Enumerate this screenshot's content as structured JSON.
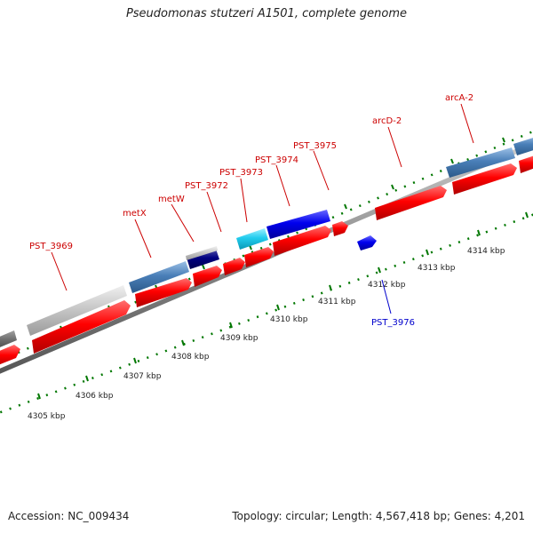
{
  "title": "Pseudomonas stutzeri A1501, complete genome",
  "footer": {
    "accession": "Accession: NC_009434",
    "topology": "Topology: circular; Length: 4,567,418 bp; Genes: 4,201"
  },
  "ruler": {
    "unit": "kbp",
    "labels": [
      "4305 kbp",
      "4306 kbp",
      "4307 kbp",
      "4308 kbp",
      "4309 kbp",
      "4310 kbp",
      "4311 kbp",
      "4312 kbp",
      "4313 kbp",
      "4314 kbp"
    ]
  },
  "gene_labels": [
    {
      "name": "PST_3969",
      "color": "#cc0000"
    },
    {
      "name": "metX",
      "color": "#cc0000"
    },
    {
      "name": "metW",
      "color": "#cc0000"
    },
    {
      "name": "PST_3972",
      "color": "#cc0000"
    },
    {
      "name": "PST_3973",
      "color": "#cc0000"
    },
    {
      "name": "PST_3974",
      "color": "#cc0000"
    },
    {
      "name": "PST_3975",
      "color": "#cc0000"
    },
    {
      "name": "arcD-2",
      "color": "#cc0000"
    },
    {
      "name": "arcA-2",
      "color": "#cc0000"
    },
    {
      "name": "PST_3976",
      "color": "#0000cc"
    }
  ],
  "colors": {
    "gene_red": "#ff0000",
    "gene_blue": "#0000ee",
    "steel_blue": "#4a7fb8",
    "light_grey": "#c8c8c8",
    "dark_grey": "#707070",
    "cyan": "#22ccee",
    "navy": "#000080",
    "backbone": "#888888",
    "tick_green": "#007700"
  }
}
